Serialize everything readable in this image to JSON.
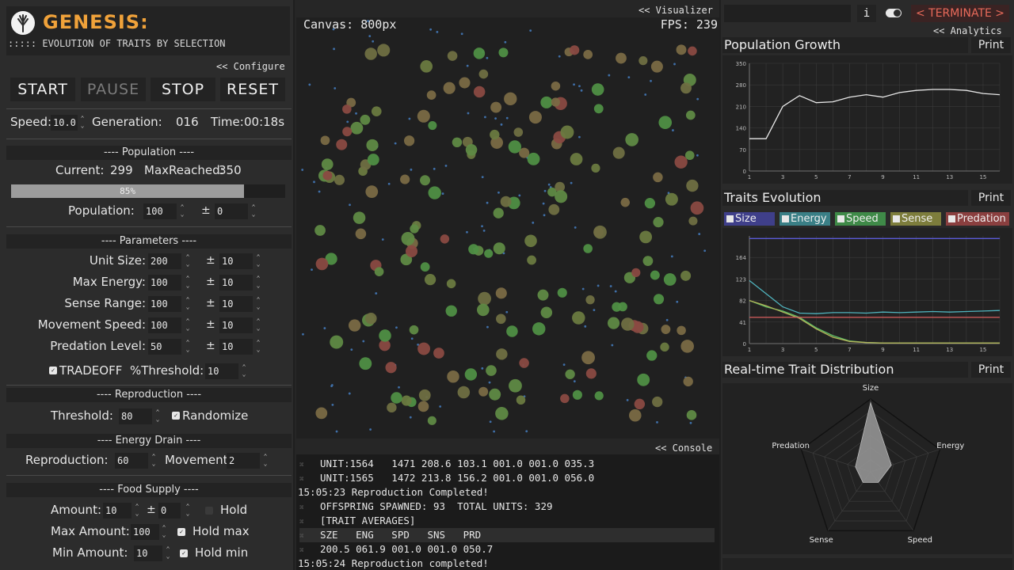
{
  "header": {
    "title": "GENESIS:",
    "subtitle": "::::: EVOLUTION OF TRAITS BY SELECTION"
  },
  "configure_link": "<< Configure",
  "controls": {
    "start": "START",
    "pause": "PAUSE",
    "stop": "STOP",
    "reset": "RESET"
  },
  "status": {
    "speed_label": "Speed:",
    "speed_value": "10.0",
    "generation_label": "Generation:",
    "generation_value": "016",
    "time_label": "Time:",
    "time_value": "00:18s"
  },
  "population": {
    "heading": "---- Population ----",
    "current_label": "Current:",
    "current_value": "299",
    "max_label": "MaxReached:",
    "max_value": "350",
    "progress_label": "85%",
    "progress_fraction": 0.85,
    "initial_label": "Population:",
    "initial_value": "100",
    "pm": "±",
    "initial_var": "0"
  },
  "parameters": {
    "heading": "---- Parameters ----",
    "pm": "±",
    "rows": [
      {
        "label": "Unit Size:",
        "value": "200",
        "var": "10"
      },
      {
        "label": "Max Energy:",
        "value": "100",
        "var": "10"
      },
      {
        "label": "Sense Range:",
        "value": "100",
        "var": "10"
      },
      {
        "label": "Movement Speed:",
        "value": "100",
        "var": "10"
      },
      {
        "label": "Predation Level:",
        "value": "50",
        "var": "10"
      }
    ],
    "tradeoff_label": "TRADEOFF",
    "tradeoff_checked": true,
    "threshold_label": "%Threshold:",
    "threshold_value": "10"
  },
  "reproduction": {
    "heading": "---- Reproduction ----",
    "threshold_label": "Threshold:",
    "threshold_value": "80",
    "randomize_label": "Randomize",
    "randomize_checked": true
  },
  "energy_drain": {
    "heading": "---- Energy Drain ----",
    "reproduction_label": "Reproduction:",
    "reproduction_value": "60",
    "movement_label": "Movement:",
    "movement_value": "2"
  },
  "food": {
    "heading": "---- Food Supply ----",
    "amount_label": "Amount:",
    "amount_value": "10",
    "pm": "±",
    "amount_var": "0",
    "hold_label": "Hold",
    "hold_checked": false,
    "max_label": "Max Amount:",
    "max_value": "100",
    "hold_max_label": "Hold max",
    "hold_max_checked": true,
    "min_label": "Min Amount:",
    "min_value": "10",
    "hold_min_label": "Hold min",
    "hold_min_checked": true
  },
  "visualizer": {
    "link": "<< Visualizer",
    "canvas_label": "Canvas: 800px",
    "fps_label": "FPS: 239"
  },
  "console": {
    "link": "<< Console",
    "lines": [
      {
        "mark": "⌘",
        "text": "UNIT:1564   1471 208.6 103.1 001.0 001.0 035.3",
        "hl": false
      },
      {
        "mark": "⌘",
        "text": "UNIT:1565   1472 213.8 156.2 001.0 001.0 056.0",
        "hl": false
      },
      {
        "mark": "",
        "text": "15:05:23 Reproduction Completed!",
        "hl": false
      },
      {
        "mark": "⌘",
        "text": "OFFSPRING SPAWNED: 93  TOTAL UNITS: 329",
        "hl": false
      },
      {
        "mark": "⌘",
        "text": "[TRAIT AVERAGES]",
        "hl": false
      },
      {
        "mark": "⌘",
        "text": "SZE   ENG   SPD   SNS   PRD",
        "hl": true
      },
      {
        "mark": "⌘",
        "text": "200.5 061.9 001.0 001.0 050.7",
        "hl": false
      },
      {
        "mark": "",
        "text": "15:05:24 Reproduction completed!",
        "hl": false
      }
    ]
  },
  "topbar": {
    "info": "i",
    "terminate": "< TERMINATE >",
    "analytics_link": "<< Analytics"
  },
  "charts": {
    "print": "Print",
    "population_title": "Population Growth",
    "traits_title": "Traits Evolution",
    "distribution_title": "Real-time Trait Distribution",
    "legend": [
      {
        "name": "Size",
        "color": "#3f3f8a",
        "checked": true
      },
      {
        "name": "Energy",
        "color": "#3a7f86",
        "checked": true
      },
      {
        "name": "Speed",
        "color": "#3f8a48",
        "checked": true
      },
      {
        "name": "Sense",
        "color": "#7d7d3c",
        "checked": true
      },
      {
        "name": "Predation",
        "color": "#8a3f3f",
        "checked": true
      }
    ],
    "radar_labels": [
      "Size",
      "Energy",
      "Speed",
      "Sense",
      "Predation"
    ]
  },
  "chart_data": [
    {
      "type": "line",
      "title": "Population Growth",
      "x": [
        1,
        2,
        3,
        4,
        5,
        6,
        7,
        8,
        9,
        10,
        11,
        12,
        13,
        14,
        15,
        16
      ],
      "xticks": [
        1,
        3,
        5,
        7,
        9,
        11,
        13,
        15
      ],
      "ylim": [
        0,
        350
      ],
      "yticks": [
        0,
        70,
        140,
        210,
        280,
        350
      ],
      "series": [
        {
          "color": "#e8e8e8",
          "values": [
            105,
            105,
            210,
            245,
            222,
            225,
            240,
            248,
            240,
            255,
            262,
            265,
            265,
            262,
            252,
            248
          ]
        }
      ]
    },
    {
      "type": "line",
      "title": "Traits Evolution",
      "x": [
        1,
        2,
        3,
        4,
        5,
        6,
        7,
        8,
        9,
        10,
        11,
        12,
        13,
        14,
        15,
        16
      ],
      "xticks": [
        1,
        3,
        5,
        7,
        9,
        11,
        13,
        15
      ],
      "ylim": [
        0,
        205
      ],
      "yticks": [
        0,
        41,
        82,
        123,
        164
      ],
      "series": [
        {
          "name": "Size",
          "color": "#5b5bd6",
          "values": [
            200,
            200,
            200,
            200,
            200,
            200,
            200,
            200,
            200,
            200,
            200,
            200,
            200,
            200,
            200,
            200
          ]
        },
        {
          "name": "Energy",
          "color": "#4fb3bd",
          "values": [
            120,
            95,
            70,
            58,
            57,
            59,
            59,
            58,
            60,
            59,
            60,
            61,
            60,
            61,
            62,
            63
          ]
        },
        {
          "name": "Speed",
          "color": "#5fbf66",
          "values": [
            82,
            70,
            62,
            50,
            30,
            15,
            5,
            2,
            1,
            1,
            1,
            1,
            1,
            1,
            1,
            1
          ]
        },
        {
          "name": "Sense",
          "color": "#b3b35a",
          "values": [
            82,
            72,
            60,
            48,
            28,
            12,
            4,
            2,
            1,
            1,
            1,
            1,
            1,
            1,
            1,
            1
          ]
        },
        {
          "name": "Predation",
          "color": "#c85a5a",
          "values": [
            50,
            50,
            50,
            50,
            50,
            50,
            50,
            50,
            50,
            50,
            50,
            50,
            50,
            50,
            50,
            50
          ]
        }
      ]
    },
    {
      "type": "radar",
      "title": "Real-time Trait Distribution",
      "categories": [
        "Size",
        "Energy",
        "Speed",
        "Sense",
        "Predation"
      ],
      "values": [
        0.95,
        0.3,
        0.18,
        0.18,
        0.22
      ]
    }
  ]
}
